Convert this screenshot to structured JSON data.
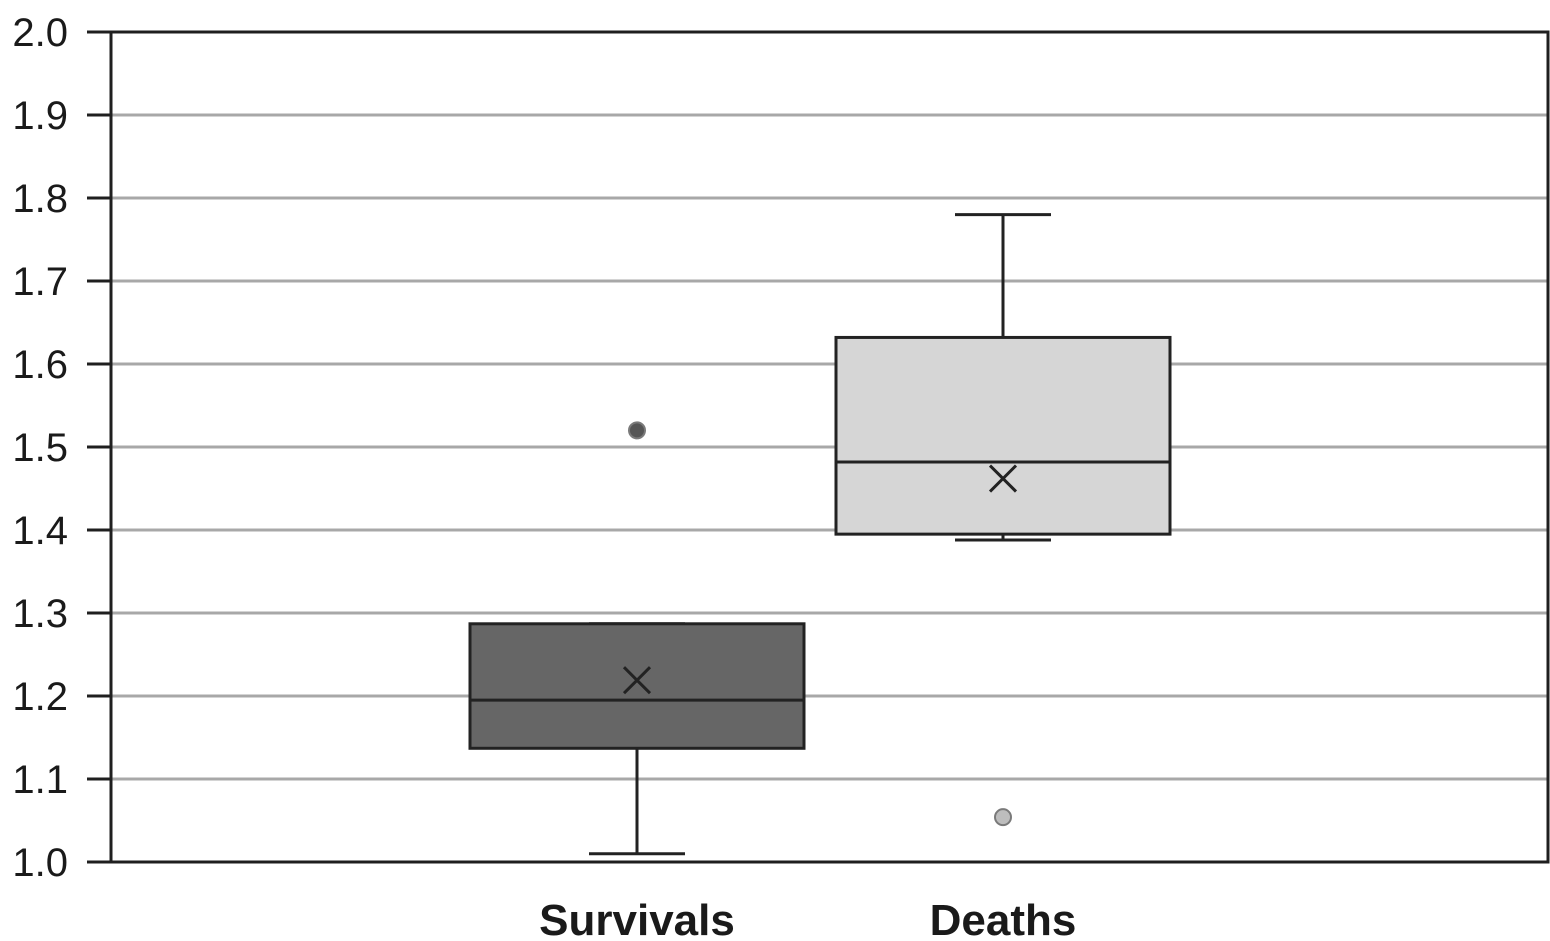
{
  "chart_data": {
    "type": "box",
    "title": "",
    "xlabel": "",
    "ylabel": "",
    "ylim": [
      1.0,
      2.0
    ],
    "yticks": [
      "1.0",
      "1.1",
      "1.2",
      "1.3",
      "1.4",
      "1.5",
      "1.6",
      "1.7",
      "1.8",
      "1.9",
      "2.0"
    ],
    "grid": true,
    "categories": [
      "Survivals",
      "Deaths"
    ],
    "series": [
      {
        "category": "Survivals",
        "color": "#666666",
        "outlier_color": "#555555",
        "min": 1.01,
        "q1": 1.137,
        "median": 1.195,
        "q3": 1.287,
        "max": 1.287,
        "mean": 1.219,
        "outliers": [
          1.52
        ]
      },
      {
        "category": "Deaths",
        "color": "#d6d6d6",
        "outlier_color": "#bdbdbd",
        "min": 1.388,
        "q1": 1.395,
        "median": 1.482,
        "q3": 1.632,
        "max": 1.78,
        "mean": 1.462,
        "outliers": [
          1.054
        ]
      }
    ]
  }
}
